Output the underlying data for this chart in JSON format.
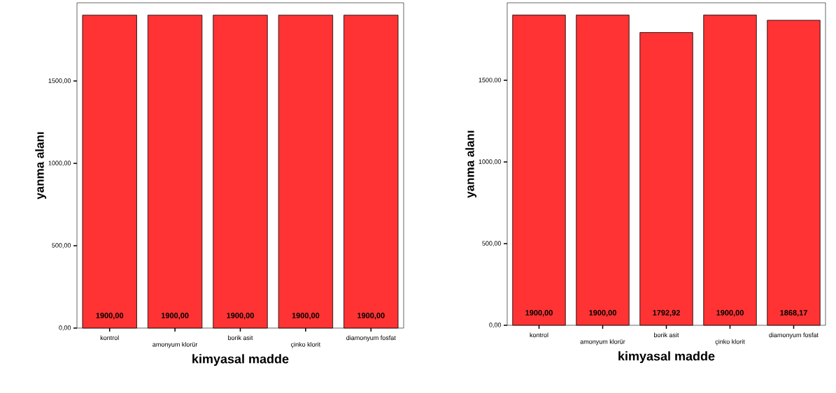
{
  "chart_data": [
    {
      "type": "bar",
      "categories": [
        "kontrol",
        "amonyum klorür",
        "borik asit",
        "çinko klorit",
        "diamonyum fosfat"
      ],
      "values": [
        1900,
        1900,
        1900,
        1900,
        1900
      ],
      "value_labels": [
        "1900,00",
        "1900,00",
        "1900,00",
        "1900,00",
        "1900,00"
      ],
      "color": "#ff3333",
      "xlabel": "kimyasal madde",
      "ylabel": "yanma alanı",
      "ylim": [
        0,
        1975
      ],
      "yticks": [
        {
          "value": 0,
          "label": "0,00"
        },
        {
          "value": 500,
          "label": "500,00"
        },
        {
          "value": 1000,
          "label": "1000,00"
        },
        {
          "value": 1500,
          "label": "1500,00"
        }
      ]
    },
    {
      "type": "bar",
      "categories": [
        "kontrol",
        "amonyum klorür",
        "borik asit",
        "çinko klorit",
        "diamonyum fosfat"
      ],
      "values": [
        1900,
        1900,
        1792.92,
        1900,
        1868.17
      ],
      "value_labels": [
        "1900,00",
        "1900,00",
        "1792,92",
        "1900,00",
        "1868,17"
      ],
      "color": "#ff3333",
      "xlabel": "kimyasal madde",
      "ylabel": "yanma alanı",
      "ylim": [
        0,
        1975
      ],
      "yticks": [
        {
          "value": 0,
          "label": "0,00"
        },
        {
          "value": 500,
          "label": "500,00"
        },
        {
          "value": 1000,
          "label": "1000,00"
        },
        {
          "value": 1500,
          "label": "1500,00"
        }
      ]
    }
  ]
}
